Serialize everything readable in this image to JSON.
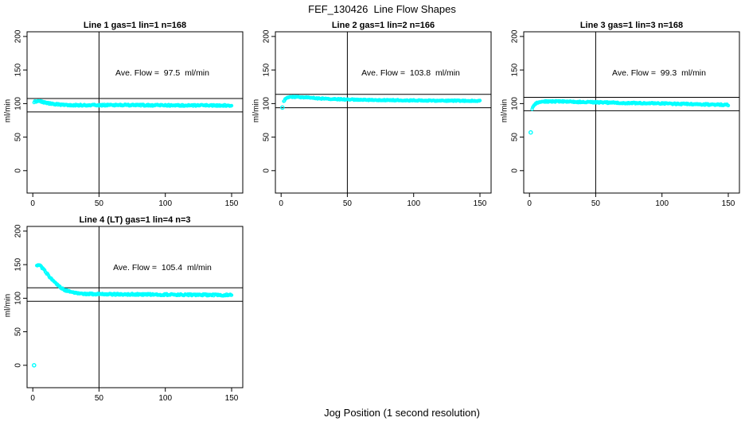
{
  "figure": {
    "title": "FEF_130426  Line Flow Shapes",
    "xlabel": "Jog Position (1 second resolution)",
    "background": "#ffffff",
    "axis_color": "#000000",
    "point_color": "#00FFFF"
  },
  "chart_data": [
    {
      "type": "scatter",
      "title": "Line 1 gas=1 lin=1 n=168",
      "ylabel": "ml/min",
      "ave_flow": 97.5,
      "ave_flow_label": "Ave. Flow =  97.5  ml/min",
      "n": 168,
      "xticks": [
        0,
        50,
        100,
        150
      ],
      "yticks": [
        0,
        50,
        100,
        150,
        200
      ],
      "xlim": [
        -4.3,
        158.4
      ],
      "ylim": [
        -33.4,
        207
      ],
      "vline_x": 50,
      "hlines": [
        107.5,
        87.5
      ],
      "jitter": 1.1,
      "seed": 1,
      "outliers": [],
      "anchors": [
        [
          1,
          102.5
        ],
        [
          2,
          103
        ],
        [
          4,
          103.5
        ],
        [
          6,
          103
        ],
        [
          9,
          101.5
        ],
        [
          12,
          100.5
        ],
        [
          15,
          99.5
        ],
        [
          18,
          98.8
        ],
        [
          22,
          98.2
        ],
        [
          28,
          97.8
        ],
        [
          35,
          97.6
        ],
        [
          50,
          97.6
        ],
        [
          70,
          97.8
        ],
        [
          90,
          97.5
        ],
        [
          110,
          97.3
        ],
        [
          130,
          97.2
        ],
        [
          150,
          97.2
        ]
      ]
    },
    {
      "type": "scatter",
      "title": "Line 2 gas=1 lin=2 n=166",
      "ylabel": "ml/min",
      "ave_flow": 103.8,
      "ave_flow_label": "Ave. Flow =  103.8  ml/min",
      "n": 166,
      "xticks": [
        0,
        50,
        100,
        150
      ],
      "yticks": [
        0,
        50,
        100,
        150,
        200
      ],
      "xlim": [
        -4.3,
        158.4
      ],
      "ylim": [
        -33.4,
        207
      ],
      "vline_x": 50,
      "hlines": [
        113.8,
        93.8
      ],
      "jitter": 0.8,
      "seed": 2,
      "outliers": [
        [
          1,
          94
        ]
      ],
      "anchors": [
        [
          2,
          103
        ],
        [
          3,
          106.5
        ],
        [
          4,
          108
        ],
        [
          6,
          109.3
        ],
        [
          9,
          110
        ],
        [
          13,
          109.8
        ],
        [
          18,
          109.2
        ],
        [
          24,
          108.3
        ],
        [
          30,
          107.5
        ],
        [
          38,
          106.8
        ],
        [
          48,
          106.2
        ],
        [
          60,
          105.6
        ],
        [
          75,
          105.2
        ],
        [
          95,
          104.8
        ],
        [
          115,
          104.4
        ],
        [
          135,
          104.2
        ],
        [
          150,
          104
        ]
      ]
    },
    {
      "type": "scatter",
      "title": "Line 3 gas=1 lin=3 n=168",
      "ylabel": "ml/min",
      "ave_flow": 99.3,
      "ave_flow_label": "Ave. Flow =  99.3  ml/min",
      "n": 168,
      "xticks": [
        0,
        50,
        100,
        150
      ],
      "yticks": [
        0,
        50,
        100,
        150,
        200
      ],
      "xlim": [
        -4.3,
        158.4
      ],
      "ylim": [
        -33.4,
        207
      ],
      "vline_x": 50,
      "hlines": [
        109.3,
        89.3
      ],
      "jitter": 1.1,
      "seed": 3,
      "outliers": [
        [
          1,
          57
        ]
      ],
      "anchors": [
        [
          2,
          91
        ],
        [
          3,
          96
        ],
        [
          4,
          99
        ],
        [
          5,
          100.5
        ],
        [
          7,
          102
        ],
        [
          10,
          102.8
        ],
        [
          14,
          103.2
        ],
        [
          20,
          103.2
        ],
        [
          28,
          102.8
        ],
        [
          38,
          102.3
        ],
        [
          50,
          101.8
        ],
        [
          65,
          101.2
        ],
        [
          80,
          100.6
        ],
        [
          95,
          100.2
        ],
        [
          110,
          99.6
        ],
        [
          125,
          99
        ],
        [
          140,
          98.4
        ],
        [
          150,
          98
        ]
      ]
    },
    {
      "type": "scatter",
      "title": "Line 4 (LT) gas=1 lin=4 n=3",
      "ylabel": "ml/min",
      "ave_flow": 105.4,
      "ave_flow_label": "Ave. Flow =  105.4  ml/min",
      "n": 3,
      "xticks": [
        0,
        50,
        100,
        150
      ],
      "yticks": [
        0,
        50,
        100,
        150,
        200
      ],
      "xlim": [
        -4.3,
        158.4
      ],
      "ylim": [
        -33.4,
        207
      ],
      "vline_x": 50,
      "hlines": [
        115.4,
        95.4
      ],
      "jitter": 1.2,
      "seed": 4,
      "outliers": [
        [
          1,
          0
        ]
      ],
      "anchors": [
        [
          3,
          149
        ],
        [
          4,
          150
        ],
        [
          5,
          149
        ],
        [
          6,
          147.5
        ],
        [
          7,
          145.5
        ],
        [
          9,
          141
        ],
        [
          11,
          136
        ],
        [
          13,
          131
        ],
        [
          15,
          126.5
        ],
        [
          17,
          122.5
        ],
        [
          19,
          119
        ],
        [
          21,
          116
        ],
        [
          24,
          112.5
        ],
        [
          27,
          110
        ],
        [
          30,
          108.5
        ],
        [
          34,
          107.3
        ],
        [
          40,
          106.5
        ],
        [
          50,
          106
        ],
        [
          65,
          105.8
        ],
        [
          85,
          105.6
        ],
        [
          105,
          105.3
        ],
        [
          125,
          105
        ],
        [
          140,
          104.8
        ],
        [
          150,
          104.7
        ]
      ]
    }
  ]
}
